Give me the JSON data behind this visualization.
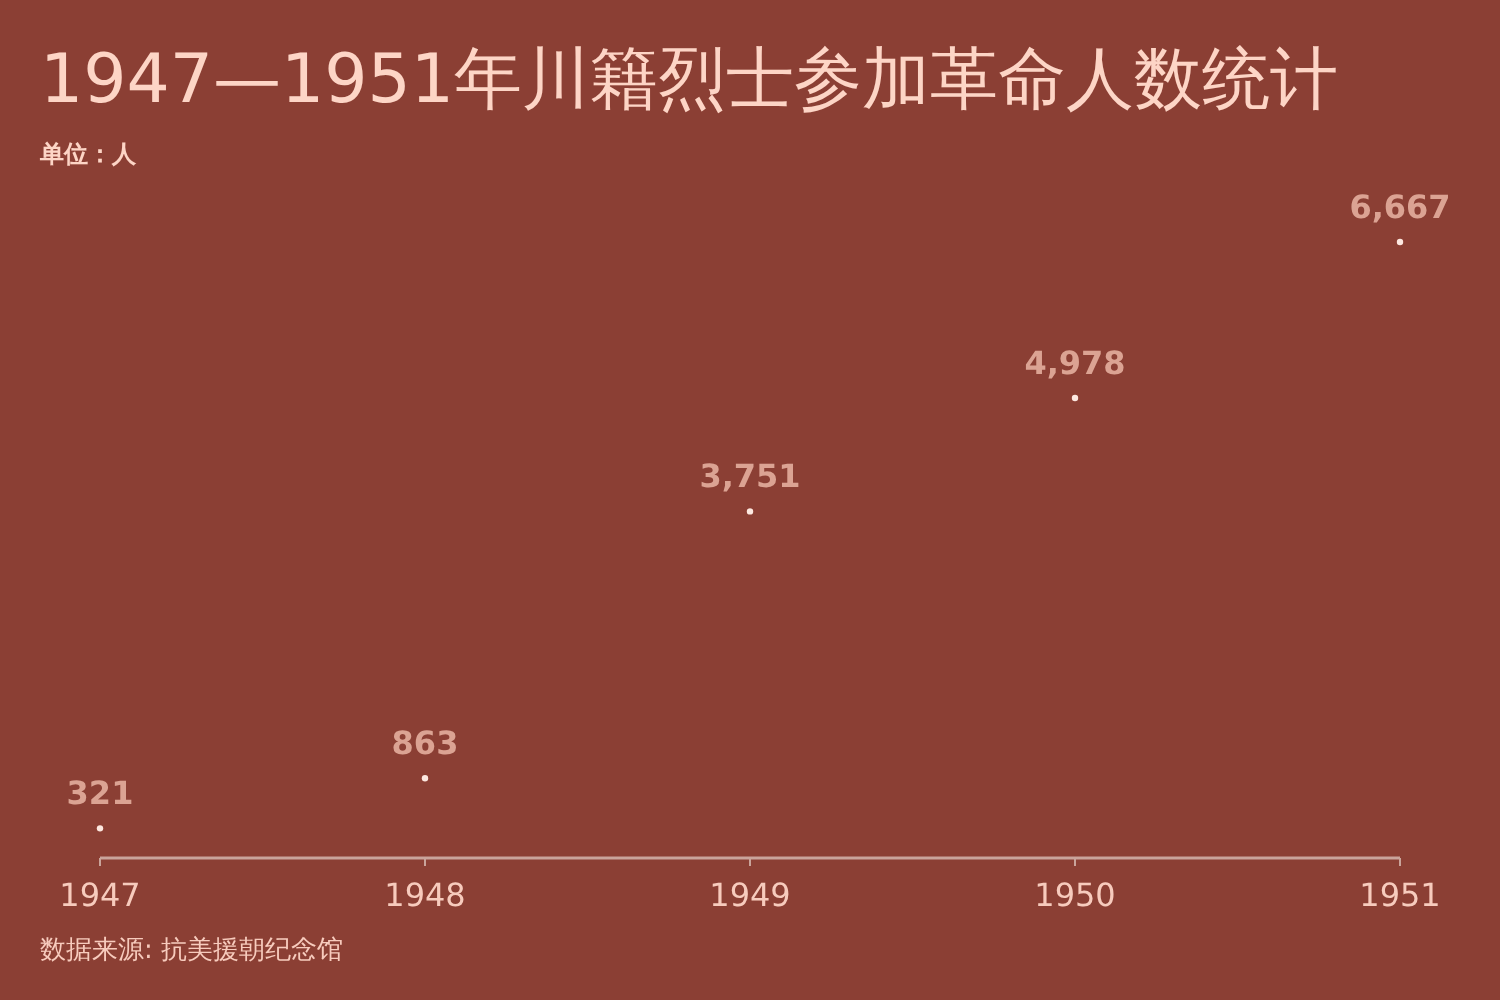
{
  "chart_data": {
    "type": "scatter",
    "title": "1947—1951年川籍烈士参加革命人数统计",
    "subtitle": "单位：人",
    "annotations": [
      "数据来源: 抗美援朝纪念馆"
    ],
    "x": [
      1947,
      1948,
      1949,
      1950,
      1951
    ],
    "values": [
      321,
      863,
      3751,
      4978,
      6667
    ],
    "value_labels": [
      "321",
      "863",
      "3,751",
      "4,978",
      "6,667"
    ],
    "color": "#fde8e0",
    "xlim": [
      1947,
      1951
    ],
    "xticks": [
      1947,
      1948,
      1949,
      1950,
      1951
    ],
    "marker": "circle"
  }
}
